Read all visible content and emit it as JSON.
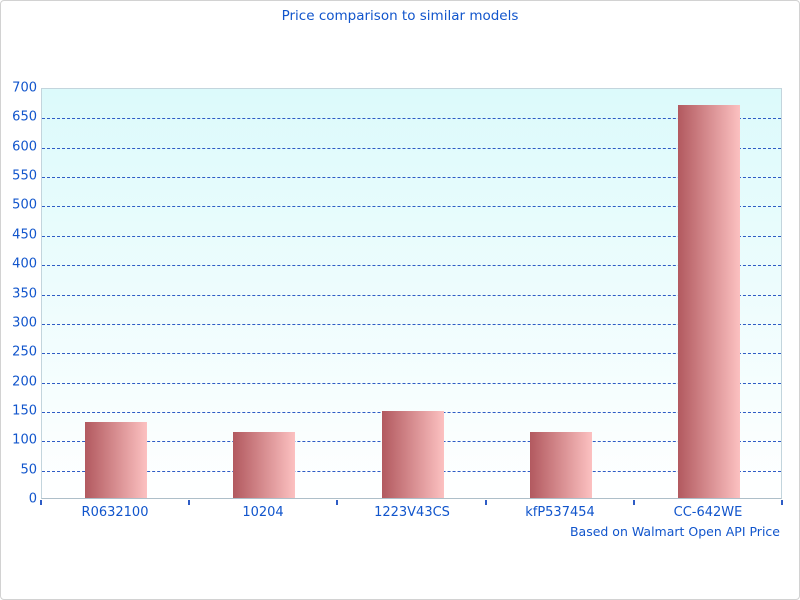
{
  "chart_data": {
    "type": "bar",
    "title": "Price comparison to similar models",
    "categories": [
      "R0632100",
      "10204",
      "1223V43CS",
      "kfP537454",
      "CC-642WE"
    ],
    "values": [
      130,
      112,
      148,
      112,
      670
    ],
    "xlabel": "",
    "ylabel": "",
    "ylim": [
      0,
      700
    ],
    "yticks": [
      0,
      50,
      100,
      150,
      200,
      250,
      300,
      350,
      400,
      450,
      500,
      550,
      600,
      650,
      700
    ],
    "grid": "horizontal-dashed",
    "legend_position": "none",
    "annotation": "Based on Walmart Open API Price",
    "colors": {
      "text_blue": "#1155cc",
      "grid_blue": "#2e5cc5",
      "bar_gradient_left": "#b2595f",
      "bar_gradient_right": "#fcc1c1",
      "plot_bg_top": "#dcfafb",
      "plot_bg_bottom": "#ffffff"
    }
  }
}
